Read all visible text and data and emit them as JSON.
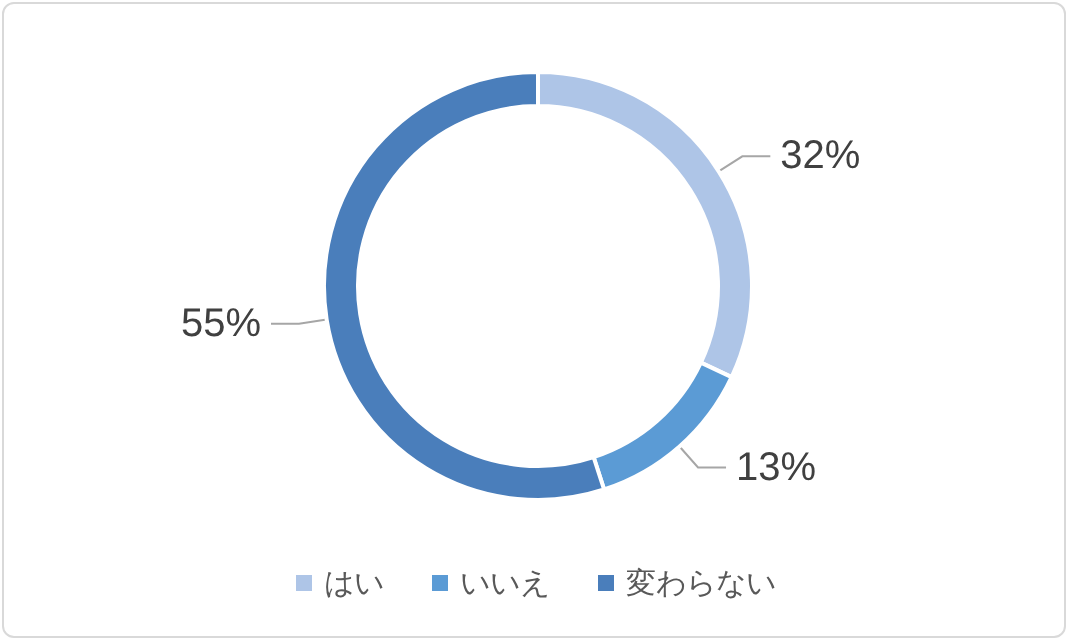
{
  "chart_data": {
    "type": "donut",
    "categories": [
      "はい",
      "いいえ",
      "変わらない"
    ],
    "values": [
      32,
      13,
      55
    ],
    "colors": [
      "#aec5e7",
      "#5b9bd5",
      "#4a7ebb"
    ],
    "value_labels": [
      "32%",
      "13%",
      "55%"
    ],
    "legend": "bottom"
  }
}
